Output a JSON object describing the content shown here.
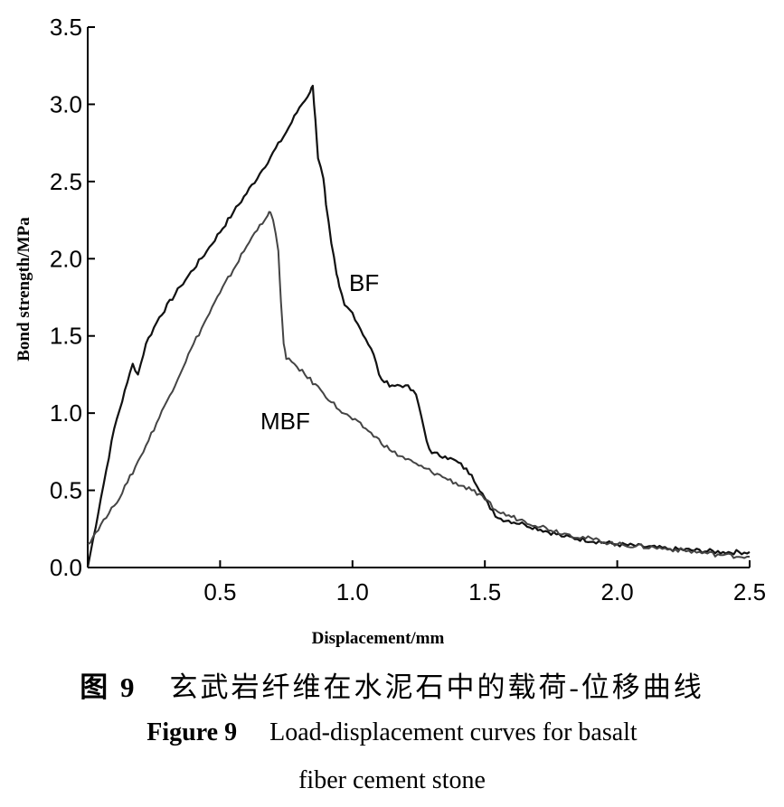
{
  "chart_data": {
    "type": "line",
    "xlabel": "Displacement/mm",
    "ylabel": "Bond strength/MPa",
    "xlim": [
      0,
      2.5
    ],
    "ylim": [
      0,
      3.5
    ],
    "x_ticks": [
      "0.5",
      "1.0",
      "1.5",
      "2.0",
      "2.5"
    ],
    "y_ticks": [
      "0.0",
      "0.5",
      "1.0",
      "1.5",
      "2.0",
      "2.5",
      "3.0",
      "3.5"
    ],
    "grid": false,
    "legend": "inline labels",
    "series": [
      {
        "name": "BF",
        "color": "#111111",
        "x": [
          0.0,
          0.05,
          0.1,
          0.15,
          0.17,
          0.19,
          0.22,
          0.27,
          0.35,
          0.45,
          0.55,
          0.65,
          0.75,
          0.8,
          0.84,
          0.85,
          0.86,
          0.87,
          0.89,
          0.9,
          0.92,
          0.94,
          0.95,
          0.97,
          1.0,
          1.05,
          1.08,
          1.1,
          1.12,
          1.15,
          1.2,
          1.24,
          1.26,
          1.28,
          1.3,
          1.35,
          1.4,
          1.45,
          1.5,
          1.52,
          1.55,
          1.65,
          1.8,
          2.0,
          2.2,
          2.4,
          2.5
        ],
        "y": [
          0.0,
          0.45,
          0.9,
          1.2,
          1.32,
          1.25,
          1.45,
          1.62,
          1.82,
          2.05,
          2.3,
          2.55,
          2.82,
          2.98,
          3.08,
          3.12,
          2.9,
          2.65,
          2.52,
          2.35,
          2.1,
          1.9,
          1.82,
          1.7,
          1.65,
          1.48,
          1.38,
          1.25,
          1.2,
          1.18,
          1.18,
          1.12,
          0.98,
          0.82,
          0.74,
          0.72,
          0.68,
          0.6,
          0.45,
          0.38,
          0.32,
          0.28,
          0.2,
          0.15,
          0.12,
          0.1,
          0.1
        ]
      },
      {
        "name": "MBF",
        "color": "#444444",
        "x": [
          0.0,
          0.05,
          0.08,
          0.1,
          0.15,
          0.2,
          0.3,
          0.4,
          0.5,
          0.6,
          0.65,
          0.68,
          0.69,
          0.7,
          0.72,
          0.73,
          0.74,
          0.75,
          0.78,
          0.82,
          0.88,
          0.95,
          1.05,
          1.15,
          1.25,
          1.35,
          1.45,
          1.5,
          1.55,
          1.65,
          1.8,
          2.0,
          2.2,
          2.4,
          2.5
        ],
        "y": [
          0.15,
          0.28,
          0.35,
          0.4,
          0.55,
          0.72,
          1.08,
          1.45,
          1.78,
          2.08,
          2.22,
          2.28,
          2.3,
          2.25,
          2.05,
          1.72,
          1.45,
          1.35,
          1.32,
          1.25,
          1.15,
          1.02,
          0.9,
          0.75,
          0.66,
          0.58,
          0.5,
          0.44,
          0.36,
          0.3,
          0.22,
          0.15,
          0.12,
          0.08,
          0.07
        ]
      }
    ]
  },
  "caption": {
    "cn_number": "图 9",
    "cn_text": "玄武岩纤维在水泥石中的载荷-位移曲线",
    "en_number": "Figure 9",
    "en_text_line1": "Load-displacement curves for basalt",
    "en_text_line2": "fiber cement stone"
  }
}
